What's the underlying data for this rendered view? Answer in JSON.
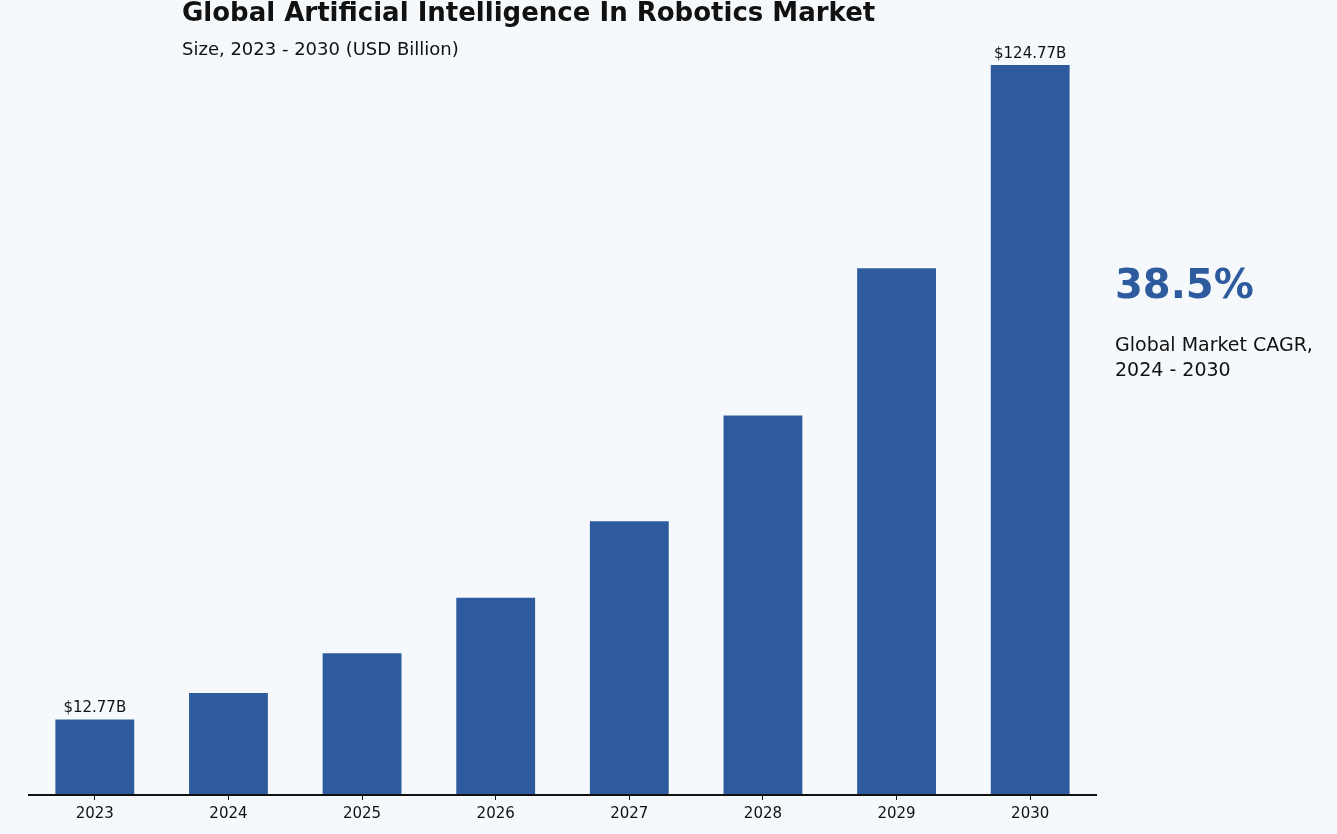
{
  "chart_data": {
    "type": "bar",
    "title": "Global Artificial Intelligence In Robotics Market",
    "subtitle": "Size, 2023 - 2030 (USD Billion)",
    "categories": [
      "2023",
      "2024",
      "2025",
      "2026",
      "2027",
      "2028",
      "2029",
      "2030"
    ],
    "values": [
      12.77,
      17.3,
      24.1,
      33.6,
      46.7,
      64.8,
      90.0,
      124.77
    ],
    "value_labels": [
      "$12.77B",
      null,
      null,
      null,
      null,
      null,
      null,
      "$124.77B"
    ],
    "color": "#2e5a9e",
    "annotations": [
      "38.5%",
      "Global Market CAGR,\n2024 - 2030"
    ],
    "grid": false
  }
}
